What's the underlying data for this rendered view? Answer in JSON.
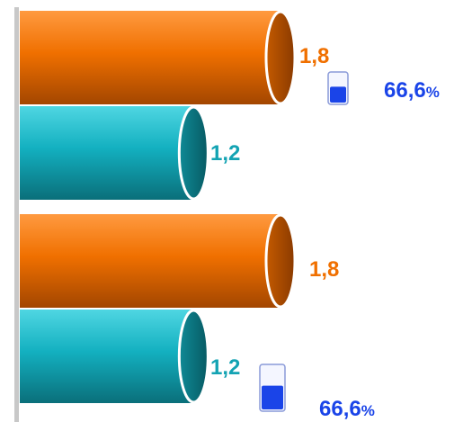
{
  "chart_data": {
    "type": "bar",
    "orientation": "horizontal",
    "style": "3d-cylinder",
    "groups": [
      {
        "bars": [
          {
            "value": 1.8,
            "label": "1,8",
            "color": "#f07000",
            "label_color": "#f07000"
          },
          {
            "value": 1.2,
            "label": "1,2",
            "color": "#13b0c0",
            "label_color": "#13a3b3"
          }
        ],
        "percent": {
          "value": 66.6,
          "number": "66,6",
          "symbol": "%",
          "color": "#1a44e8",
          "fill_fraction": 0.55
        }
      },
      {
        "bars": [
          {
            "value": 1.8,
            "label": "1,8",
            "color": "#f07000",
            "label_color": "#f07000"
          },
          {
            "value": 1.2,
            "label": "1,2",
            "color": "#13b0c0",
            "label_color": "#13a3b3"
          }
        ],
        "percent": {
          "value": 66.6,
          "number": "66,6",
          "symbol": "%",
          "color": "#1a44e8",
          "fill_fraction": 0.55
        }
      }
    ],
    "xlim": [
      0,
      1.8
    ],
    "axis_color": "#c8c8c8",
    "grid": false,
    "legend": "none"
  }
}
